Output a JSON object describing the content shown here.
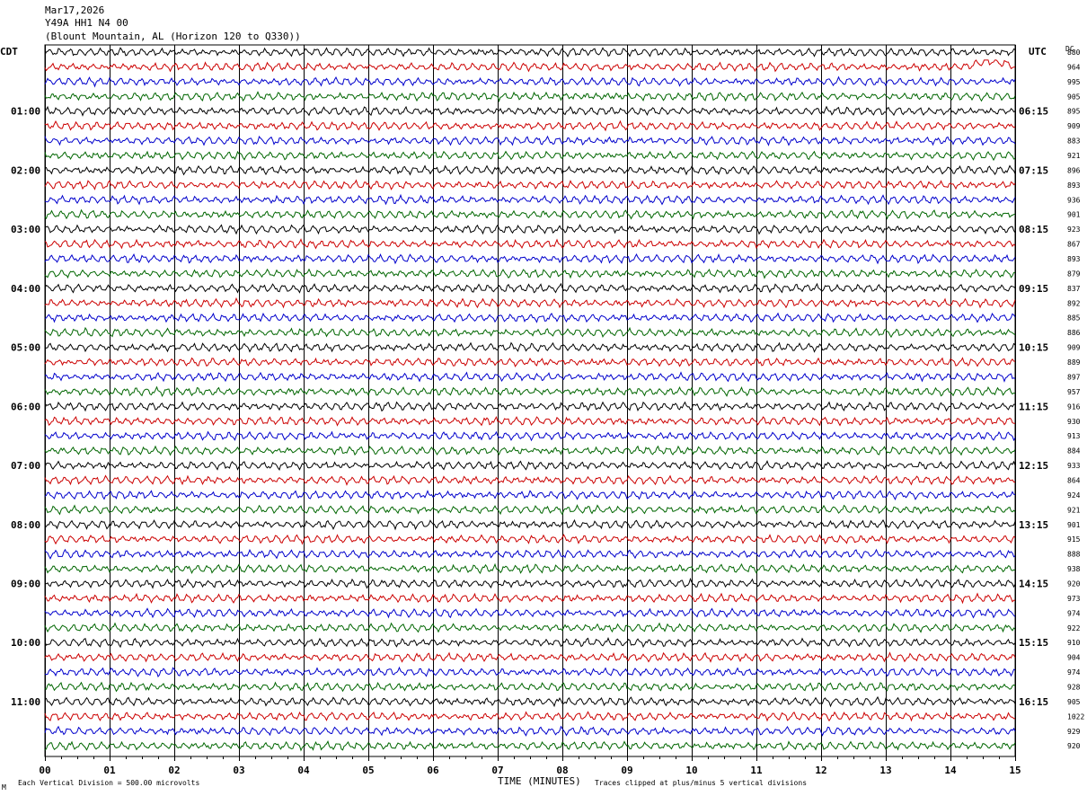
{
  "header": {
    "date": "Mar17,2026",
    "station": "Y49A HH1 N4 00",
    "location": "(Blount Mountain, AL (Horizon 120 to Q330))"
  },
  "left_zone": "CDT",
  "right_zone": "UTC",
  "dc_header": "DC",
  "footer": {
    "division_note": "Each Vertical Division =  500.00 microvolts",
    "xlabel": "TIME (MINUTES)",
    "clip_note": "Traces clipped at plus/minus 5 vertical divisions",
    "corner_mark": "M"
  },
  "colors": {
    "background": "#ffffff",
    "grid": "#000000",
    "trace_cycle": [
      "#000000",
      "#cc0000",
      "#0000cc",
      "#006600"
    ]
  },
  "chart_data": {
    "type": "line",
    "title": "",
    "xlabel": "TIME (MINUTES)",
    "xlim": [
      0,
      15
    ],
    "x_ticks": [
      "00",
      "01",
      "02",
      "03",
      "04",
      "05",
      "06",
      "07",
      "08",
      "09",
      "10",
      "11",
      "12",
      "13",
      "14",
      "15"
    ],
    "traces_per_hour": 4,
    "left_hour_labels": [
      "01:00",
      "02:00",
      "03:00",
      "04:00",
      "05:00",
      "06:00",
      "07:00",
      "08:00",
      "09:00",
      "10:00",
      "11:00"
    ],
    "right_hour_labels": [
      "06:15",
      "07:15",
      "08:15",
      "09:15",
      "10:15",
      "11:15",
      "12:15",
      "13:15",
      "14:15",
      "15:15",
      "16:15"
    ],
    "dc_offsets": [
      "880",
      "964",
      "995",
      "905",
      "895",
      "909",
      "883",
      "921",
      "896",
      "893",
      "936",
      "901",
      "923",
      "867",
      "893",
      "879",
      "837",
      "892",
      "885",
      "886",
      "909",
      "889",
      "897",
      "957",
      "916",
      "930",
      "913",
      "884",
      "933",
      "864",
      "924",
      "921",
      "901",
      "915",
      "888",
      "938",
      "920",
      "973",
      "974",
      "922",
      "910",
      "904",
      "974",
      "928",
      "905",
      "1022",
      "929",
      "920"
    ]
  }
}
